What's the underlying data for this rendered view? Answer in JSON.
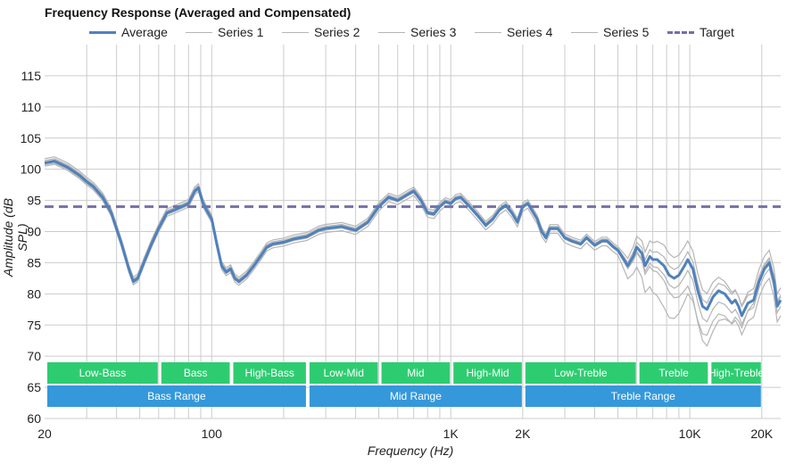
{
  "chart_data": {
    "type": "line",
    "title": "Frequency Response (Averaged and Compensated)",
    "xlabel": "Frequency (Hz)",
    "ylabel": "Amplitude (dB SPL)",
    "xscale": "log",
    "xlim": [
      20,
      24000
    ],
    "ylim": [
      60,
      120
    ],
    "x_ticks": [
      {
        "v": 20,
        "label": "20"
      },
      {
        "v": 100,
        "label": "100"
      },
      {
        "v": 1000,
        "label": "1K"
      },
      {
        "v": 2000,
        "label": "2K"
      },
      {
        "v": 10000,
        "label": "10K"
      },
      {
        "v": 20000,
        "label": "20K"
      }
    ],
    "y_ticks": [
      60,
      65,
      70,
      75,
      80,
      85,
      90,
      95,
      100,
      105,
      110,
      115
    ],
    "grid": true,
    "legend_position": "top",
    "legend": [
      "Average",
      "Series 1",
      "Series 2",
      "Series 3",
      "Series 4",
      "Series 5",
      "Target"
    ],
    "colors": {
      "average": "#4f81bd",
      "series": "#b5b5b5",
      "target": "#7470a8",
      "band_green": "#2ecc71",
      "band_blue": "#3498db",
      "grid": "#cccccc"
    },
    "target": 94,
    "average": [
      [
        20,
        101
      ],
      [
        22,
        101.3
      ],
      [
        25,
        100.3
      ],
      [
        28,
        99
      ],
      [
        30,
        98
      ],
      [
        32,
        97.2
      ],
      [
        35,
        95.5
      ],
      [
        38,
        93
      ],
      [
        42,
        88
      ],
      [
        45,
        84
      ],
      [
        47,
        82
      ],
      [
        49,
        82.5
      ],
      [
        52,
        85
      ],
      [
        56,
        88
      ],
      [
        60,
        90.5
      ],
      [
        65,
        93
      ],
      [
        70,
        93.5
      ],
      [
        75,
        94
      ],
      [
        80,
        94.5
      ],
      [
        85,
        96.5
      ],
      [
        88,
        97
      ],
      [
        92,
        94.5
      ],
      [
        95,
        93.5
      ],
      [
        100,
        92
      ],
      [
        105,
        88
      ],
      [
        110,
        84.5
      ],
      [
        115,
        83.5
      ],
      [
        120,
        84
      ],
      [
        125,
        82.5
      ],
      [
        130,
        82
      ],
      [
        140,
        83
      ],
      [
        150,
        84.5
      ],
      [
        160,
        86
      ],
      [
        170,
        87.5
      ],
      [
        180,
        88
      ],
      [
        200,
        88.3
      ],
      [
        220,
        88.8
      ],
      [
        250,
        89.2
      ],
      [
        280,
        90.2
      ],
      [
        300,
        90.5
      ],
      [
        350,
        90.8
      ],
      [
        400,
        90.2
      ],
      [
        450,
        91.5
      ],
      [
        500,
        94
      ],
      [
        550,
        95.5
      ],
      [
        600,
        95
      ],
      [
        650,
        95.8
      ],
      [
        700,
        96.5
      ],
      [
        750,
        95
      ],
      [
        800,
        93
      ],
      [
        850,
        92.8
      ],
      [
        900,
        94
      ],
      [
        950,
        94.8
      ],
      [
        1000,
        94.5
      ],
      [
        1050,
        95.3
      ],
      [
        1100,
        95.5
      ],
      [
        1200,
        94
      ],
      [
        1300,
        92.5
      ],
      [
        1400,
        91
      ],
      [
        1500,
        92
      ],
      [
        1600,
        93.5
      ],
      [
        1700,
        94.2
      ],
      [
        1800,
        93
      ],
      [
        1900,
        91.5
      ],
      [
        2000,
        94
      ],
      [
        2100,
        94.5
      ],
      [
        2300,
        92
      ],
      [
        2400,
        90
      ],
      [
        2500,
        89
      ],
      [
        2600,
        90.5
      ],
      [
        2800,
        90.5
      ],
      [
        3000,
        89
      ],
      [
        3200,
        88.5
      ],
      [
        3500,
        88
      ],
      [
        3700,
        89
      ],
      [
        4000,
        87.8
      ],
      [
        4300,
        88.5
      ],
      [
        4500,
        88.5
      ],
      [
        4800,
        87.5
      ],
      [
        5000,
        87
      ],
      [
        5300,
        85.5
      ],
      [
        5500,
        84.5
      ],
      [
        5800,
        86
      ],
      [
        6000,
        87.5
      ],
      [
        6300,
        86.5
      ],
      [
        6500,
        84.5
      ],
      [
        6800,
        86
      ],
      [
        7000,
        85.5
      ],
      [
        7300,
        85.5
      ],
      [
        7800,
        84.5
      ],
      [
        8200,
        83
      ],
      [
        8600,
        82.5
      ],
      [
        9000,
        83
      ],
      [
        9500,
        84.5
      ],
      [
        9800,
        85.5
      ],
      [
        10300,
        84
      ],
      [
        10800,
        80.5
      ],
      [
        11300,
        78
      ],
      [
        11800,
        77.5
      ],
      [
        12500,
        79.5
      ],
      [
        13200,
        80.5
      ],
      [
        14000,
        80
      ],
      [
        15000,
        78.5
      ],
      [
        15500,
        79
      ],
      [
        16000,
        78
      ],
      [
        16500,
        76.5
      ],
      [
        17500,
        78.5
      ],
      [
        18500,
        79
      ],
      [
        19500,
        82
      ],
      [
        20500,
        84
      ],
      [
        21500,
        85
      ],
      [
        22500,
        82
      ],
      [
        23200,
        78
      ],
      [
        24000,
        79
      ]
    ],
    "series": [
      {
        "name": "Series 1",
        "offsets": [
          [
            20,
            0.4
          ],
          [
            5000,
            0.3
          ],
          [
            8000,
            1.5
          ],
          [
            12000,
            1
          ],
          [
            20000,
            2
          ]
        ]
      },
      {
        "name": "Series 2",
        "offsets": [
          [
            20,
            -0.3
          ],
          [
            5000,
            -0.2
          ],
          [
            8000,
            -1.5
          ],
          [
            12000,
            -2
          ],
          [
            20000,
            -1
          ]
        ]
      },
      {
        "name": "Series 3",
        "offsets": [
          [
            20,
            0.7
          ],
          [
            5000,
            0.6
          ],
          [
            8000,
            3.5
          ],
          [
            12000,
            2.5
          ],
          [
            20000,
            0.8
          ]
        ]
      },
      {
        "name": "Series 4",
        "offsets": [
          [
            20,
            -0.5
          ],
          [
            5000,
            -0.8
          ],
          [
            8000,
            -7
          ],
          [
            12000,
            -4
          ],
          [
            20000,
            -2.5
          ]
        ]
      },
      {
        "name": "Series 5",
        "offsets": [
          [
            20,
            0.2
          ],
          [
            5000,
            0.1
          ],
          [
            8000,
            -2.5
          ],
          [
            12000,
            -6
          ],
          [
            20000,
            0.5
          ]
        ]
      }
    ],
    "bands_row1": [
      {
        "label": "Low-Bass",
        "from": 20,
        "to": 60
      },
      {
        "label": "Bass",
        "from": 60,
        "to": 120
      },
      {
        "label": "High-Bass",
        "from": 120,
        "to": 250
      },
      {
        "label": "Low-Mid",
        "from": 250,
        "to": 500
      },
      {
        "label": "Mid",
        "from": 500,
        "to": 1000
      },
      {
        "label": "High-Mid",
        "from": 1000,
        "to": 2000
      },
      {
        "label": "Low-Treble",
        "from": 2000,
        "to": 6000
      },
      {
        "label": "Treble",
        "from": 6000,
        "to": 12000
      },
      {
        "label": "High-Treble",
        "from": 12000,
        "to": 20000
      }
    ],
    "bands_row2": [
      {
        "label": "Bass Range",
        "from": 20,
        "to": 250
      },
      {
        "label": "Mid Range",
        "from": 250,
        "to": 2000
      },
      {
        "label": "Treble Range",
        "from": 2000,
        "to": 20000
      }
    ]
  }
}
